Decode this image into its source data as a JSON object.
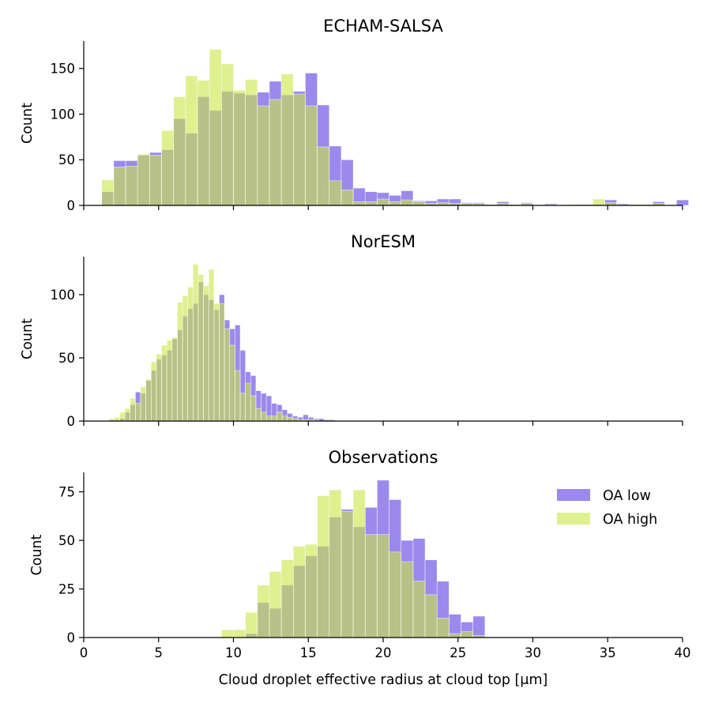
{
  "figure": {
    "xlabel": "Cloud droplet effective radius at cloud top [μm]",
    "xlim": [
      0,
      40
    ],
    "xticks": [
      0,
      5,
      10,
      15,
      20,
      25,
      30,
      35,
      40
    ],
    "colors": {
      "oa_low": "#7b61e8",
      "oa_high": "#c9e645",
      "overlap": "#a3b27d"
    }
  },
  "legend": {
    "placement": "top-right of Observations panel",
    "items": [
      "OA low",
      "OA high"
    ]
  },
  "chart_data": [
    {
      "type": "histogram",
      "title": "ECHAM-SALSA",
      "ylabel": "Count",
      "ylim": [
        0,
        180
      ],
      "yticks": [
        0,
        50,
        100,
        150
      ],
      "bin_width": 0.8,
      "series": [
        {
          "name": "OA low",
          "x": [
            1.2,
            2.0,
            2.8,
            3.6,
            4.4,
            5.2,
            6.0,
            6.8,
            7.6,
            8.4,
            9.2,
            10.0,
            10.8,
            11.6,
            12.4,
            13.2,
            14.0,
            14.8,
            15.6,
            16.4,
            17.2,
            18.0,
            18.8,
            19.6,
            20.4,
            21.2,
            22.0,
            22.8,
            23.6,
            24.4,
            25.2,
            26.0,
            26.8,
            27.6,
            28.4,
            29.2,
            30.8,
            32.4,
            33.2,
            34.0,
            34.8,
            35.6,
            36.4,
            37.2,
            38.0,
            39.6
          ],
          "values": [
            15,
            49,
            49,
            55,
            58,
            61,
            95,
            79,
            119,
            104,
            125,
            123,
            121,
            124,
            136,
            121,
            125,
            145,
            110,
            65,
            50,
            19,
            15,
            14,
            11,
            16,
            5,
            5,
            7,
            7,
            3,
            3,
            1,
            4,
            1,
            3,
            2,
            1,
            1,
            1,
            6,
            2,
            1,
            1,
            4,
            6
          ]
        },
        {
          "name": "OA high",
          "x": [
            1.2,
            2.0,
            2.8,
            3.6,
            4.4,
            5.2,
            6.0,
            6.8,
            7.6,
            8.4,
            9.2,
            10.0,
            10.8,
            11.6,
            12.4,
            13.2,
            14.0,
            14.8,
            15.6,
            16.4,
            17.2,
            18.0,
            18.8,
            19.6,
            20.4,
            21.2,
            22.0,
            22.8,
            23.6,
            24.4,
            25.2,
            26.0,
            26.8,
            27.6,
            28.4,
            29.2,
            30.8,
            32.4,
            33.2,
            34.0,
            34.8,
            35.6,
            36.4,
            37.2,
            38.0,
            39.6
          ],
          "values": [
            28,
            42,
            43,
            56,
            55,
            82,
            119,
            142,
            137,
            171,
            155,
            126,
            138,
            109,
            116,
            144,
            122,
            109,
            64,
            27,
            17,
            4,
            4,
            7,
            4,
            6,
            4,
            2,
            3,
            2,
            2,
            2,
            1,
            2,
            1,
            2,
            1,
            1,
            1,
            7,
            3,
            1,
            1,
            1,
            2,
            0
          ]
        }
      ]
    },
    {
      "type": "histogram",
      "title": "NorESM",
      "ylabel": "Count",
      "ylim": [
        0,
        130
      ],
      "yticks": [
        0,
        50,
        100
      ],
      "bin_width": 0.35,
      "series": [
        {
          "name": "OA low",
          "x": [
            1.7,
            2.05,
            2.4,
            2.75,
            3.1,
            3.45,
            3.8,
            4.15,
            4.5,
            4.85,
            5.2,
            5.55,
            5.9,
            6.25,
            6.6,
            6.95,
            7.3,
            7.65,
            8.0,
            8.35,
            8.7,
            9.05,
            9.4,
            9.75,
            10.1,
            10.45,
            10.8,
            11.15,
            11.5,
            11.85,
            12.2,
            12.55,
            12.9,
            13.25,
            13.6,
            13.95,
            14.3,
            14.65,
            15.0,
            15.35,
            15.7,
            16.05,
            16.4
          ],
          "values": [
            1,
            1,
            2,
            7,
            13,
            23,
            22,
            32,
            40,
            49,
            52,
            56,
            65,
            72,
            83,
            89,
            93,
            110,
            100,
            96,
            88,
            100,
            80,
            73,
            76,
            56,
            39,
            36,
            24,
            22,
            20,
            14,
            13,
            9,
            6,
            4,
            3,
            5,
            3,
            2,
            2,
            1,
            1
          ]
        },
        {
          "name": "OA high",
          "x": [
            1.7,
            2.05,
            2.4,
            2.75,
            3.1,
            3.45,
            3.8,
            4.15,
            4.5,
            4.85,
            5.2,
            5.55,
            5.9,
            6.25,
            6.6,
            6.95,
            7.3,
            7.65,
            8.0,
            8.35,
            8.7,
            9.05,
            9.4,
            9.75,
            10.1,
            10.45,
            10.8,
            11.15,
            11.5,
            11.85,
            12.2,
            12.55,
            12.9,
            13.25,
            13.6,
            13.95,
            14.3,
            14.65,
            15.0,
            15.35,
            15.7,
            16.05,
            16.4
          ],
          "values": [
            2,
            3,
            7,
            10,
            18,
            14,
            27,
            33,
            47,
            53,
            60,
            64,
            66,
            94,
            99,
            106,
            124,
            116,
            107,
            120,
            93,
            93,
            73,
            60,
            40,
            22,
            30,
            20,
            10,
            7,
            4,
            4,
            7,
            4,
            3,
            2,
            1,
            1,
            1,
            1,
            0,
            0,
            0
          ]
        }
      ]
    },
    {
      "type": "histogram",
      "title": "Observations",
      "ylabel": "Count",
      "ylim": [
        0,
        85
      ],
      "yticks": [
        0,
        25,
        50,
        75
      ],
      "bin_width": 0.8,
      "series": [
        {
          "name": "OA low",
          "x": [
            9.2,
            10.0,
            10.8,
            11.6,
            12.4,
            13.2,
            14.0,
            14.8,
            15.6,
            16.4,
            17.2,
            18.0,
            18.8,
            19.6,
            20.4,
            21.2,
            22.0,
            22.8,
            23.6,
            24.4,
            25.2,
            26.0
          ],
          "values": [
            0,
            0,
            2,
            18,
            15,
            27,
            37,
            42,
            47,
            62,
            66,
            57,
            67,
            81,
            71,
            50,
            51,
            40,
            29,
            12,
            8,
            11
          ]
        },
        {
          "name": "OA high",
          "x": [
            9.2,
            10.0,
            10.8,
            11.6,
            12.4,
            13.2,
            14.0,
            14.8,
            15.6,
            16.4,
            17.2,
            18.0,
            18.8,
            19.6,
            20.4,
            21.2,
            22.0,
            22.8,
            23.6,
            24.4,
            25.2,
            26.0
          ],
          "values": [
            4,
            4,
            13,
            27,
            34,
            40,
            47,
            48,
            73,
            76,
            65,
            76,
            53,
            53,
            44,
            39,
            29,
            22,
            10,
            2,
            3,
            1
          ]
        }
      ]
    }
  ]
}
